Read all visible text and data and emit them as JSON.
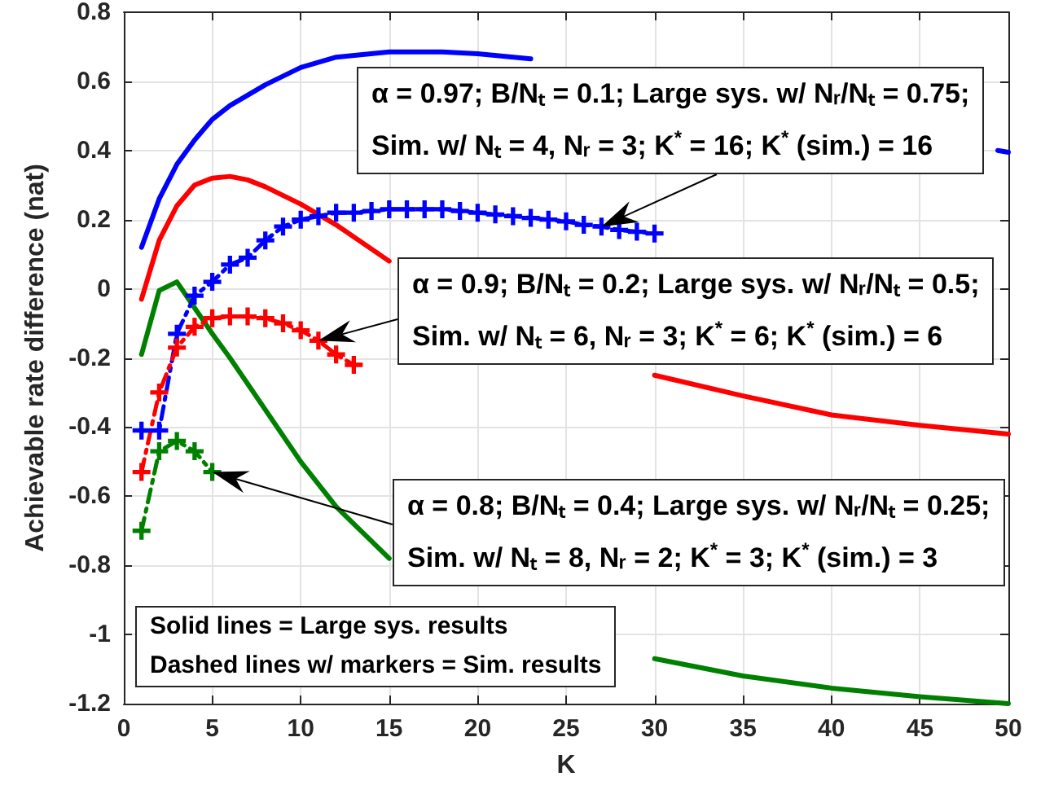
{
  "chart_data": {
    "type": "line",
    "xlabel": "K",
    "ylabel": "Achievable rate difference (nat)",
    "xlim": [
      0,
      50
    ],
    "xticks": [
      0,
      5,
      10,
      15,
      20,
      25,
      30,
      35,
      40,
      45,
      50
    ],
    "ylim": [
      -1.2,
      0.8
    ],
    "yticks": [
      -1.2,
      -1,
      -0.8,
      -0.6,
      -0.4,
      -0.2,
      0,
      0.2,
      0.4,
      0.6,
      0.8
    ],
    "grid": true,
    "series": [
      {
        "color": "#0000ff",
        "line_style": "solid",
        "marker": "none",
        "x": [
          1,
          2,
          3,
          4,
          5,
          6,
          8,
          10,
          12,
          15,
          18,
          20,
          23,
          26,
          30,
          35,
          40,
          45,
          49.4,
          50
        ],
        "values": [
          0.12,
          0.26,
          0.36,
          0.43,
          0.49,
          0.53,
          0.59,
          0.64,
          0.67,
          0.685,
          0.685,
          0.68,
          0.665,
          null,
          null,
          null,
          null,
          null,
          0.4,
          0.395
        ]
      },
      {
        "color": "#ff0000",
        "line_style": "solid",
        "marker": "none",
        "x": [
          1,
          2,
          3,
          4,
          5,
          6,
          7,
          8,
          10,
          12,
          15,
          18,
          20,
          25,
          28,
          30,
          35,
          40,
          45,
          50
        ],
        "values": [
          -0.03,
          0.14,
          0.24,
          0.3,
          0.32,
          0.325,
          0.315,
          0.295,
          0.245,
          0.185,
          0.08,
          null,
          null,
          null,
          null,
          -0.25,
          -0.31,
          -0.365,
          -0.395,
          -0.42
        ]
      },
      {
        "color": "#008000",
        "line_style": "solid",
        "marker": "none",
        "x": [
          1,
          2,
          3,
          4,
          5,
          6,
          8,
          10,
          12,
          15,
          17,
          20,
          25,
          30,
          35,
          40,
          45,
          50
        ],
        "values": [
          -0.19,
          -0.005,
          0.02,
          -0.055,
          -0.13,
          -0.2,
          -0.35,
          -0.5,
          -0.63,
          -0.78,
          null,
          null,
          null,
          -1.07,
          -1.12,
          -1.155,
          -1.18,
          -1.2
        ]
      },
      {
        "color": "#0000ff",
        "line_style": "dashed",
        "marker": "cross",
        "x": [
          1,
          2,
          3,
          4,
          5,
          6,
          7,
          8,
          9,
          10,
          11,
          12,
          13,
          14,
          15,
          16,
          17,
          18,
          19,
          20,
          21,
          22,
          23,
          24,
          25,
          26,
          27,
          28,
          29,
          30
        ],
        "values": [
          -0.41,
          -0.41,
          -0.13,
          -0.02,
          0.02,
          0.07,
          0.09,
          0.14,
          0.18,
          0.2,
          0.21,
          0.22,
          0.22,
          0.225,
          0.23,
          0.23,
          0.23,
          0.23,
          0.225,
          0.22,
          0.215,
          0.21,
          0.205,
          0.2,
          0.195,
          0.185,
          0.18,
          0.17,
          0.165,
          0.16
        ]
      },
      {
        "color": "#ff0000",
        "line_style": "dashed",
        "marker": "cross",
        "x": [
          1,
          2,
          3,
          4,
          5,
          6,
          7,
          8,
          9,
          10,
          11,
          12,
          13
        ],
        "values": [
          -0.53,
          -0.3,
          -0.17,
          -0.11,
          -0.085,
          -0.08,
          -0.08,
          -0.085,
          -0.1,
          -0.12,
          -0.15,
          -0.19,
          -0.22
        ]
      },
      {
        "color": "#008000",
        "line_style": "dashed",
        "marker": "cross",
        "x": [
          1,
          2,
          3,
          4,
          5
        ],
        "values": [
          -0.7,
          -0.47,
          -0.44,
          -0.47,
          -0.53
        ]
      }
    ],
    "annotations": [
      {
        "text": "α = 0.97; B/Nₜ = 0.1; Large sys. w/ Nᵣ/Nₜ = 0.75;\nSim. w/ Nₜ = 4, Nᵣ = 3; K$^{*}$ = 16; K$^{*}$ (sim.) = 16",
        "x": 27,
        "y": 0.18
      },
      {
        "text": "α = 0.9; B/Nₜ = 0.2; Large sys. w/ Nᵣ/Nₜ = 0.5;\nSim. w/ Nₜ = 6, Nᵣ = 3; K$^{*}$ = 6; K$^{*}$ (sim.) = 6",
        "x": 11,
        "y": -0.15
      },
      {
        "text": "α = 0.8; B/Nₜ = 0.4; Large sys. w/ Nᵣ/Nₜ = 0.25;\nSim. w/ Nₜ = 8, Nᵣ = 2; K$^{*}$ = 3; K$^{*}$ (sim.) = 3",
        "x": 5,
        "y": -0.53
      },
      "Solid lines = Large sys. results\nDashed lines w/ markers = Sim. results"
    ]
  }
}
